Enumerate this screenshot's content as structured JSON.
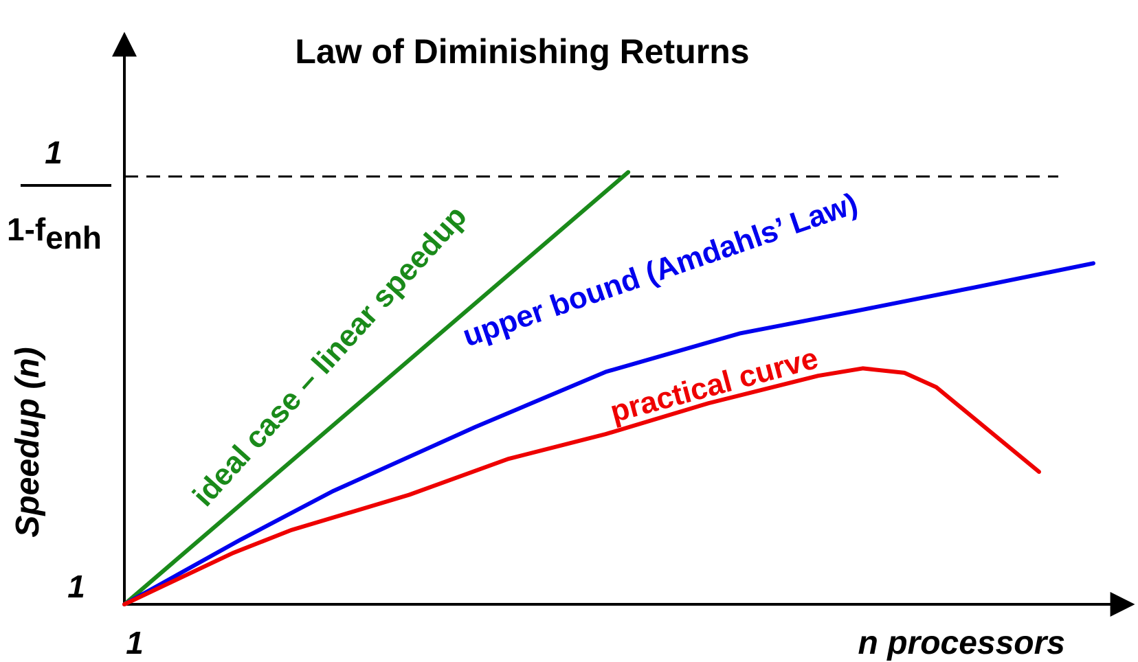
{
  "chart_data": {
    "type": "line",
    "title": "Law of Diminishing Returns",
    "xlabel": "n processors",
    "ylabel": "Speedup (n)",
    "x_tick_label": "1",
    "y_tick_label": "1",
    "asymptote": {
      "numerator": "1",
      "denominator_main": "1-f",
      "denominator_sub": "enh",
      "style": "dashed"
    },
    "xlim": [
      0,
      1000
    ],
    "ylim": [
      0,
      1000
    ],
    "grid": false,
    "series": [
      {
        "name": "ideal case – linear speedup",
        "color": "#1a8a1a",
        "points": [
          [
            0,
            0
          ],
          [
            520,
            868
          ]
        ]
      },
      {
        "name": "upper bound (Amdahls’ Law)",
        "color": "#0000ee",
        "points": [
          [
            0,
            0
          ],
          [
            120,
            130
          ],
          [
            215,
            227
          ],
          [
            362,
            356
          ],
          [
            497,
            467
          ],
          [
            635,
            544
          ],
          [
            757,
            590
          ],
          [
            876,
            636
          ],
          [
            1000,
            685
          ]
        ]
      },
      {
        "name": "practical curve",
        "color": "#ee0000",
        "points": [
          [
            0,
            0
          ],
          [
            112,
            103
          ],
          [
            172,
            149
          ],
          [
            294,
            220
          ],
          [
            396,
            292
          ],
          [
            497,
            342
          ],
          [
            603,
            404
          ],
          [
            716,
            459
          ],
          [
            762,
            474
          ],
          [
            805,
            465
          ],
          [
            838,
            436
          ],
          [
            944,
            266
          ]
        ]
      }
    ]
  }
}
